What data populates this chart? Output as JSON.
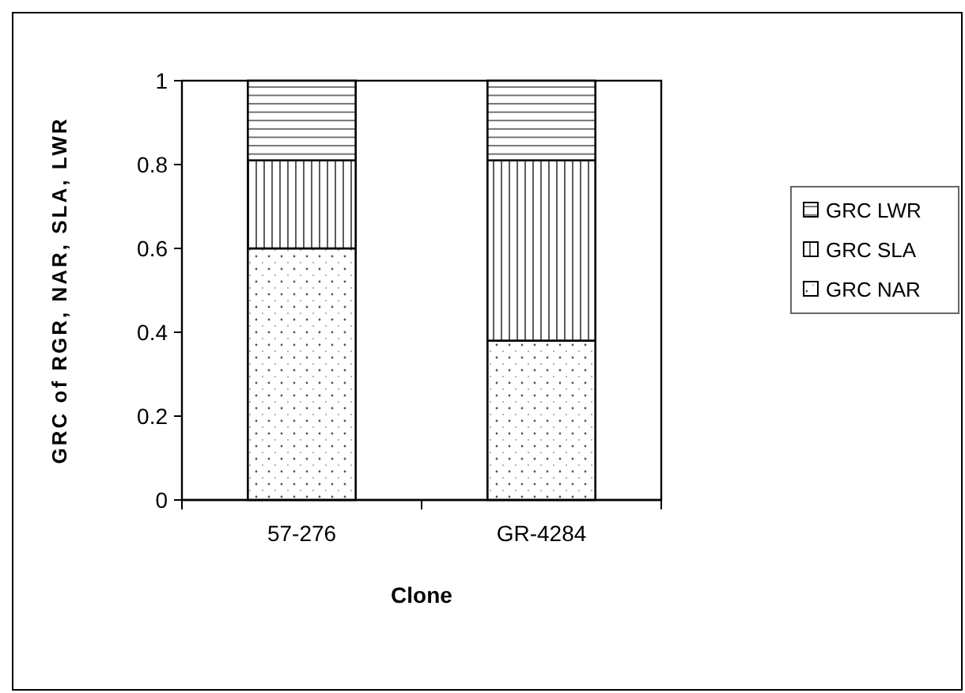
{
  "chart_data": {
    "type": "bar",
    "stacked": true,
    "xlabel": "Clone",
    "ylabel": "GRC of RGR, NAR, SLA, LWR",
    "categories": [
      "57-276",
      "GR-4284"
    ],
    "series": [
      {
        "name": "GRC NAR",
        "color": "#ffffff",
        "values": [
          0.6,
          0.38
        ]
      },
      {
        "name": "GRC SLA",
        "color": "#ffffff",
        "values": [
          0.21,
          0.43
        ]
      },
      {
        "name": "GRC LWR",
        "color": "#ffffff",
        "values": [
          0.19,
          0.19
        ]
      }
    ],
    "ylim": [
      0,
      1
    ],
    "yticks": [
      0,
      0.2,
      0.4,
      0.6,
      0.8,
      1
    ],
    "grid": false,
    "legend": "right"
  }
}
